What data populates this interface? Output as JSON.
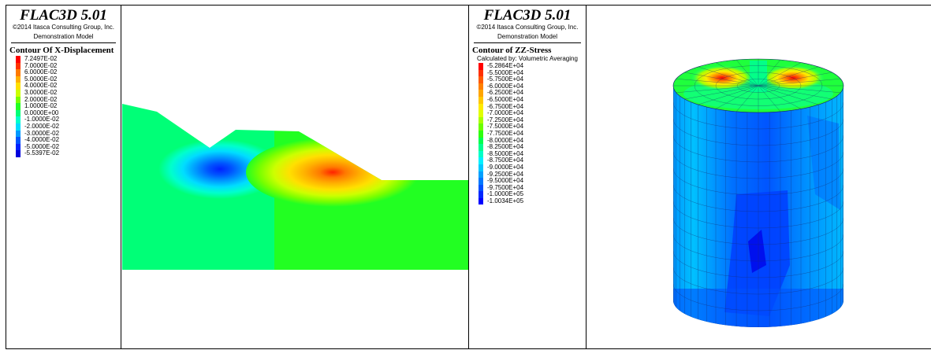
{
  "left_panel": {
    "brand": "FLAC3D 5.01",
    "copyright": "©2014 Itasca Consulting Group, Inc.",
    "model": "Demonstration Model",
    "contour_title": "Contour Of X-Displacement",
    "legend": [
      {
        "label": "7.2497E-02",
        "color": "#ff0000"
      },
      {
        "label": "7.0000E-02",
        "color": "#ff3300"
      },
      {
        "label": "6.0000E-02",
        "color": "#ff7a00"
      },
      {
        "label": "5.0000E-02",
        "color": "#ffb000"
      },
      {
        "label": "4.0000E-02",
        "color": "#ffe000"
      },
      {
        "label": "3.0000E-02",
        "color": "#ccff00"
      },
      {
        "label": "2.0000E-02",
        "color": "#77ff00"
      },
      {
        "label": "1.0000E-02",
        "color": "#22ff22"
      },
      {
        "label": "0.0000E+00",
        "color": "#00ff77"
      },
      {
        "label": "-1.0000E-02",
        "color": "#00ffcc"
      },
      {
        "label": "-2.0000E-02",
        "color": "#00ddff"
      },
      {
        "label": "-3.0000E-02",
        "color": "#0099ff"
      },
      {
        "label": "-4.0000E-02",
        "color": "#0055ff"
      },
      {
        "label": "-5.0000E-02",
        "color": "#0022ff"
      },
      {
        "label": "-5.5397E-02",
        "color": "#0000dd"
      }
    ]
  },
  "right_panel": {
    "brand": "FLAC3D 5.01",
    "copyright": "©2014 Itasca Consulting Group, Inc.",
    "model": "Demonstration Model",
    "contour_title": "Contour of ZZ-Stress",
    "subtitle": "Calculated by: Volumetric Averaging",
    "legend": [
      {
        "label": "-5.2864E+04",
        "color": "#ff0000"
      },
      {
        "label": "-5.5000E+04",
        "color": "#ff3000"
      },
      {
        "label": "-5.7500E+04",
        "color": "#ff5a00"
      },
      {
        "label": "-6.0000E+04",
        "color": "#ff8000"
      },
      {
        "label": "-6.2500E+04",
        "color": "#ffa500"
      },
      {
        "label": "-6.5000E+04",
        "color": "#ffc800"
      },
      {
        "label": "-6.7500E+04",
        "color": "#ffeb00"
      },
      {
        "label": "-7.0000E+04",
        "color": "#e0ff00"
      },
      {
        "label": "-7.2500E+04",
        "color": "#a8ff00"
      },
      {
        "label": "-7.5000E+04",
        "color": "#6cff00"
      },
      {
        "label": "-7.7500E+04",
        "color": "#30ff10"
      },
      {
        "label": "-8.0000E+04",
        "color": "#00ff50"
      },
      {
        "label": "-8.2500E+04",
        "color": "#00ff90"
      },
      {
        "label": "-8.5000E+04",
        "color": "#00ffc8"
      },
      {
        "label": "-8.7500E+04",
        "color": "#00f0ff"
      },
      {
        "label": "-9.0000E+04",
        "color": "#00c8ff"
      },
      {
        "label": "-9.2500E+04",
        "color": "#00a0ff"
      },
      {
        "label": "-9.5000E+04",
        "color": "#0078ff"
      },
      {
        "label": "-9.7500E+04",
        "color": "#0050ff"
      },
      {
        "label": "-1.0000E+05",
        "color": "#0028ff"
      },
      {
        "label": "-1.0034E+05",
        "color": "#0000ff"
      }
    ]
  }
}
